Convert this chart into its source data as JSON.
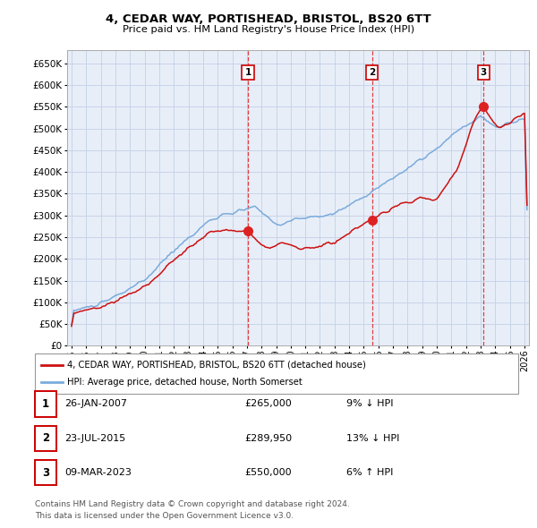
{
  "title": "4, CEDAR WAY, PORTISHEAD, BRISTOL, BS20 6TT",
  "subtitle": "Price paid vs. HM Land Registry's House Price Index (HPI)",
  "ytick_values": [
    0,
    50000,
    100000,
    150000,
    200000,
    250000,
    300000,
    350000,
    400000,
    450000,
    500000,
    550000,
    600000,
    650000
  ],
  "xlim": [
    1994.7,
    2026.3
  ],
  "ylim": [
    0,
    680000
  ],
  "grid_color": "#c8d4e8",
  "hpi_color": "#7aabdc",
  "price_color": "#cc1111",
  "vline_color": "#dd2222",
  "legend_label_price": "4, CEDAR WAY, PORTISHEAD, BRISTOL, BS20 6TT (detached house)",
  "legend_label_hpi": "HPI: Average price, detached house, North Somerset",
  "transactions": [
    {
      "label": "1",
      "date": 2007.07,
      "price": 265000,
      "pct": "9%",
      "dir": "↓",
      "date_str": "26-JAN-2007",
      "price_str": "£265,000"
    },
    {
      "label": "2",
      "date": 2015.56,
      "price": 289950,
      "pct": "13%",
      "dir": "↓",
      "date_str": "23-JUL-2015",
      "price_str": "£289,950"
    },
    {
      "label": "3",
      "date": 2023.19,
      "price": 550000,
      "pct": "6%",
      "dir": "↑",
      "date_str": "09-MAR-2023",
      "price_str": "£550,000"
    }
  ],
  "footer_line1": "Contains HM Land Registry data © Crown copyright and database right 2024.",
  "footer_line2": "This data is licensed under the Open Government Licence v3.0.",
  "background_color": "#ffffff",
  "plot_bg_color": "#e8eef8"
}
